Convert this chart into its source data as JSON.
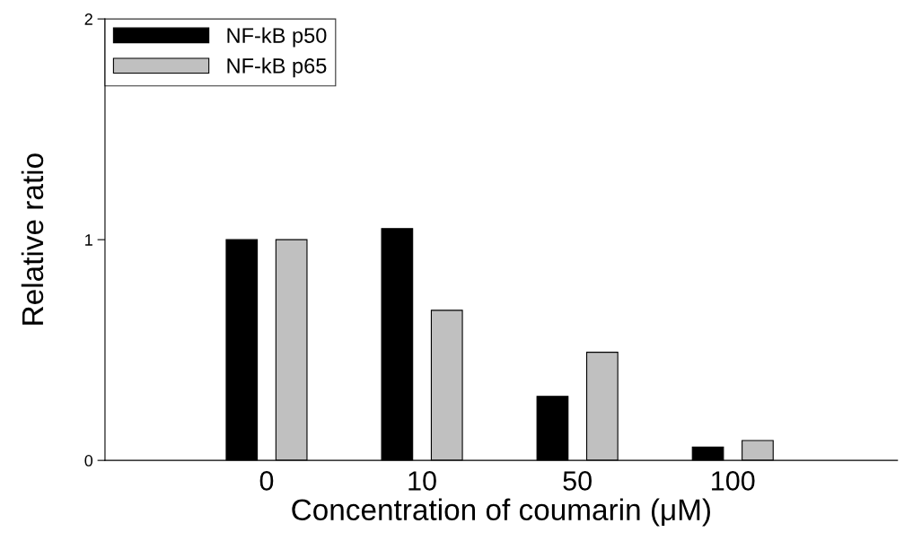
{
  "chart_data": {
    "type": "bar",
    "xlabel": "Concentration of coumarin (μM)",
    "ylabel": "Relative ratio",
    "categories": [
      "0",
      "10",
      "50",
      "100"
    ],
    "series": [
      {
        "name": "NF-kB p50",
        "color": "#000000",
        "values": [
          1.0,
          1.05,
          0.29,
          0.06
        ]
      },
      {
        "name": "NF-kB p65",
        "color": "#c0c0c0",
        "values": [
          1.0,
          0.68,
          0.49,
          0.09
        ]
      }
    ],
    "ylim": [
      0,
      2
    ],
    "yticks": [
      0,
      1,
      2
    ],
    "grid": false,
    "legend": "top left"
  }
}
